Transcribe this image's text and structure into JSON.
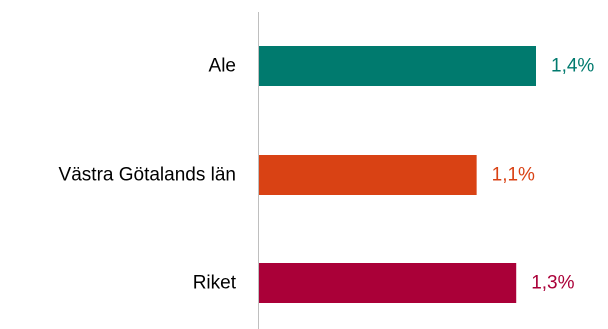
{
  "chart_data": {
    "type": "bar",
    "orientation": "horizontal",
    "categories": [
      "Ale",
      "Västra Götalands län",
      "Riket"
    ],
    "values": [
      1.4,
      1.1,
      1.3
    ],
    "value_labels": [
      "1,4%",
      "1,1%",
      "1,3%"
    ],
    "colors": [
      "#007A6E",
      "#D94214",
      "#AA0038"
    ],
    "xlim": [
      0,
      1.6
    ],
    "axis_color": "#BFBFBF",
    "grid": false,
    "legend": "none"
  }
}
